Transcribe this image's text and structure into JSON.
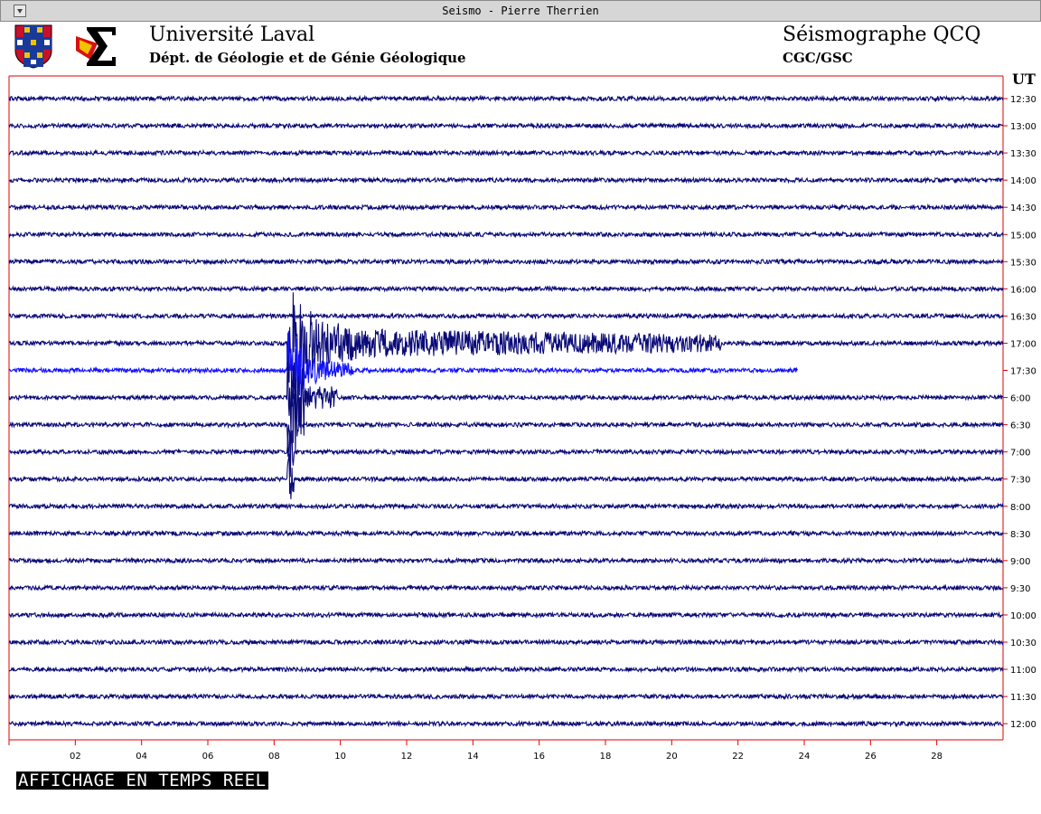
{
  "window": {
    "title": "Seismo - Pierre Therrien"
  },
  "header": {
    "university": "Université Laval",
    "department": "Dépt. de Géologie et de Génie Géologique",
    "station": "Séismographe QCQ",
    "agency": "CGC/GSC",
    "timezone": "UT"
  },
  "status": {
    "text": "AFFICHAGE EN TEMPS REEL"
  },
  "colors": {
    "trace": "#0a0a78",
    "current_trace": "#1010ff",
    "frame": "#e00000",
    "background": "#ffffff"
  },
  "icons": {
    "crest": "university-crest-icon",
    "sigma": "sigma-logo-icon"
  },
  "chart_data": {
    "type": "line",
    "title": "Séismographe QCQ",
    "xlabel": "",
    "ylabel": "UT",
    "x_ticks": [
      "02",
      "04",
      "06",
      "08",
      "10",
      "12",
      "14",
      "16",
      "18",
      "20",
      "22",
      "24",
      "26",
      "28"
    ],
    "xlim": [
      0,
      30
    ],
    "row_labels": [
      "12:30",
      "13:00",
      "13:30",
      "14:00",
      "14:30",
      "15:00",
      "15:30",
      "16:00",
      "16:30",
      "17:00",
      "17:30",
      "6:00",
      "6:30",
      "7:00",
      "7:30",
      "8:00",
      "8:30",
      "9:00",
      "9:30",
      "10:00",
      "10:30",
      "11:00",
      "11:30",
      "12:00"
    ],
    "current_row": 10,
    "current_row_end_minute": 23.8,
    "event": {
      "start_minute": 8.4,
      "peak_minute": 8.7,
      "coda_end_minute": 21.5
    }
  }
}
